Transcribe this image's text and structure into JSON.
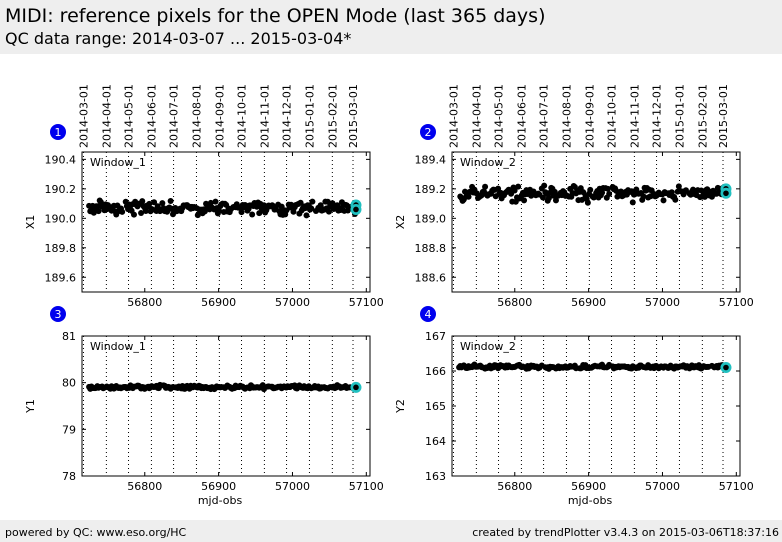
{
  "header": {
    "title": "MIDI: reference pixels for the OPEN Mode (last 365 days)",
    "subtitle": "QC data range: 2014-03-07 ... 2015-03-04*"
  },
  "footer": {
    "left": "powered by QC: www.eso.org/HC",
    "right": "created by trendPlotter v3.4.3 on 2015-03-06T18:37:16"
  },
  "colors": {
    "points": "#000000",
    "latest_highlight": "#20c0c0",
    "badge": "#0000ee",
    "header_bg": "#eeeeee"
  },
  "chart_data": [
    {
      "type": "scatter",
      "badge": "1",
      "annotation": "Window_1",
      "ylabel": "X1",
      "xlabel": "",
      "xlim": [
        56715,
        57105
      ],
      "ylim": [
        189.5,
        190.45
      ],
      "xticks": [
        56800,
        56900,
        57000,
        57100
      ],
      "yticks": [
        189.6,
        189.8,
        190.0,
        190.2,
        190.4
      ],
      "ytick_labels": [
        "189.6",
        "189.8",
        "190.0",
        "190.2",
        "190.4"
      ],
      "top_axis_dates": [
        "2014-03-01",
        "2014-04-01",
        "2014-05-01",
        "2014-06-01",
        "2014-07-01",
        "2014-08-01",
        "2014-09-01",
        "2014-10-01",
        "2014-11-01",
        "2014-12-01",
        "2015-01-01",
        "2015-02-01",
        "2015-03-01"
      ],
      "series": [
        {
          "level": 190.07,
          "start": 56723,
          "end": 57085,
          "spread": 0.035
        }
      ],
      "latest": [
        57086,
        190.09,
        57086,
        190.06
      ]
    },
    {
      "type": "scatter",
      "badge": "2",
      "annotation": "Window_2",
      "ylabel": "X2",
      "xlabel": "",
      "xlim": [
        56715,
        57105
      ],
      "ylim": [
        188.5,
        189.45
      ],
      "xticks": [
        56800,
        56900,
        57000,
        57100
      ],
      "yticks": [
        188.6,
        188.8,
        189.0,
        189.2,
        189.4
      ],
      "ytick_labels": [
        "188.6",
        "188.8",
        "189.0",
        "189.2",
        "189.4"
      ],
      "top_axis_dates": [
        "2014-03-01",
        "2014-04-01",
        "2014-05-01",
        "2014-06-01",
        "2014-07-01",
        "2014-08-01",
        "2014-09-01",
        "2014-10-01",
        "2014-11-01",
        "2014-12-01",
        "2015-01-01",
        "2015-02-01",
        "2015-03-01"
      ],
      "series": [
        {
          "level": 189.17,
          "start": 56723,
          "end": 57085,
          "spread": 0.035
        }
      ],
      "latest": [
        57086,
        189.2,
        57086,
        189.17
      ]
    },
    {
      "type": "scatter",
      "badge": "3",
      "annotation": "Window_1",
      "ylabel": "Y1",
      "xlabel": "mjd-obs",
      "xlim": [
        56715,
        57105
      ],
      "ylim": [
        78,
        81
      ],
      "xticks": [
        56800,
        56900,
        57000,
        57100
      ],
      "yticks": [
        78,
        79,
        80,
        81
      ],
      "ytick_labels": [
        "78",
        "79",
        "80",
        "81"
      ],
      "top_axis_dates": [],
      "series": [
        {
          "level": 79.9,
          "start": 56723,
          "end": 57085,
          "spread": 0.03
        }
      ],
      "latest": [
        57086,
        79.9
      ]
    },
    {
      "type": "scatter",
      "badge": "4",
      "annotation": "Window_2",
      "ylabel": "Y2",
      "xlabel": "mjd-obs",
      "xlim": [
        56715,
        57105
      ],
      "ylim": [
        163,
        167
      ],
      "xticks": [
        56800,
        56900,
        57000,
        57100
      ],
      "yticks": [
        163,
        164,
        165,
        166,
        167
      ],
      "ytick_labels": [
        "163",
        "164",
        "165",
        "166",
        "167"
      ],
      "top_axis_dates": [],
      "series": [
        {
          "level": 166.12,
          "start": 56723,
          "end": 57085,
          "spread": 0.04
        }
      ],
      "latest": [
        57086,
        166.1
      ]
    }
  ]
}
